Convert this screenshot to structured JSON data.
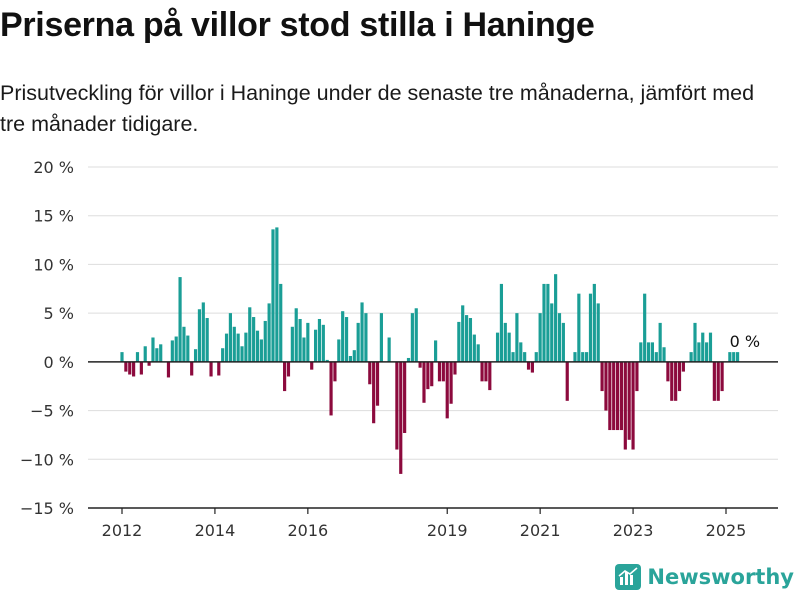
{
  "title": "Priserna på villor stod stilla i Haninge",
  "subtitle": "Prisutveckling för villor i Haninge under de senaste tre månaderna, jämfört med tre månader tidigare.",
  "brand": {
    "name": "Newsworthy",
    "icon": "bar-chart-logo-icon"
  },
  "colors": {
    "positive": "#1a9e96",
    "negative": "#8c0a3d",
    "grid": "#dddddd",
    "axis": "#222222"
  },
  "chart_data": {
    "type": "bar",
    "ylim": [
      -15,
      20
    ],
    "yticks": [
      20,
      15,
      10,
      5,
      0,
      -5,
      -10,
      -15
    ],
    "ytick_labels": [
      "20 %",
      "15 %",
      "10 %",
      "5 %",
      "0 %",
      "−5 %",
      "−10 %",
      "−15 %"
    ],
    "xticks": [
      2012,
      2014,
      2016,
      2019,
      2021,
      2023,
      2025
    ],
    "xtick_labels": [
      "2012",
      "2014",
      "2016",
      "2019",
      "2021",
      "2023",
      "2025"
    ],
    "x_start": 2012.0,
    "x_step": 0.08333,
    "annotation": "0 %",
    "values": [
      1,
      -1,
      -1.3,
      -1.5,
      1,
      -1.3,
      1.6,
      -0.4,
      2.5,
      1.4,
      1.8,
      0,
      -1.6,
      2.2,
      2.6,
      8.7,
      3.6,
      2.7,
      -1.4,
      1.3,
      5.4,
      6.1,
      4.5,
      -1.5,
      0,
      -1.4,
      1.4,
      2.9,
      5,
      3.6,
      2.9,
      1.6,
      3,
      5.6,
      4.6,
      3.2,
      2.3,
      4.2,
      6,
      13.6,
      13.8,
      8,
      -3,
      -1.5,
      3.6,
      5.5,
      4.4,
      2.5,
      4,
      -0.8,
      3.3,
      4.4,
      3.8,
      0.2,
      -5.5,
      -2,
      2.3,
      5.2,
      4.6,
      0.6,
      1.2,
      4,
      6.1,
      5,
      -2.3,
      -6.3,
      -4.5,
      5,
      0,
      2.5,
      0,
      -9,
      -11.5,
      -7.3,
      0.4,
      5,
      5.5,
      -0.6,
      -4.2,
      -2.8,
      -2.5,
      2.2,
      -2,
      -2,
      -5.8,
      -4.3,
      -1.3,
      4.1,
      5.8,
      4.8,
      4.5,
      2.8,
      1.8,
      -2,
      -2,
      -2.9,
      0,
      3,
      8,
      4,
      3,
      1,
      5,
      2,
      1,
      -0.8,
      -1.1,
      1,
      5,
      8,
      8,
      6,
      9,
      5,
      4,
      -4,
      0,
      1,
      7,
      1,
      1,
      7,
      8,
      6,
      -3,
      -5,
      -7,
      -7,
      -7,
      -7,
      -9,
      -8,
      -9,
      -3,
      2,
      7,
      2,
      2,
      1,
      4,
      1.5,
      -2,
      -4,
      -4,
      -3,
      -1,
      0,
      1,
      4,
      2,
      3,
      2,
      3,
      -4,
      -4,
      -3,
      0,
      1,
      1,
      1
    ]
  }
}
